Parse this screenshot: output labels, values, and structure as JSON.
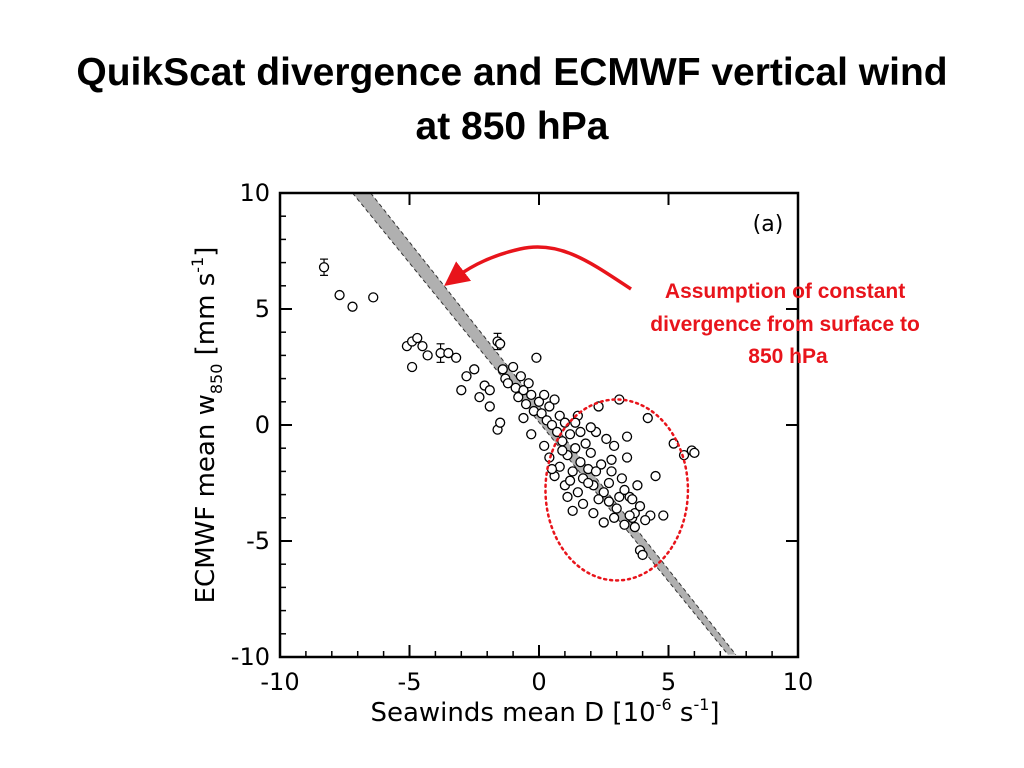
{
  "title": {
    "line1": "QuikScat divergence and ECMWF vertical wind",
    "line2": "at 850 hPa"
  },
  "annotation": {
    "callout_lines": [
      "Assumption of constant",
      "divergence from surface to",
      "850 hPa"
    ],
    "callout_color": "#e8141b"
  },
  "chart_data": {
    "type": "scatter",
    "panel_label": "(a)",
    "title": "",
    "xlabel": "Seawinds mean D [10^-6 s^-1]",
    "ylabel": "ECMWF mean w850 [mm s^-1]",
    "xlim": [
      -10,
      10
    ],
    "ylim": [
      -10,
      10
    ],
    "xticks": [
      -10,
      -5,
      0,
      5,
      10
    ],
    "yticks": [
      -10,
      -5,
      0,
      5,
      10
    ],
    "grid": false,
    "marker": "open-circle",
    "reference_band": {
      "description": "constant divergence assumption",
      "color": "#b0b0b0",
      "line1": [
        [
          -7.2,
          10
        ],
        [
          7.3,
          -9.9
        ]
      ],
      "line2": [
        [
          -6.5,
          10
        ],
        [
          7.6,
          -9.9
        ]
      ]
    },
    "highlight_ellipse": {
      "cx": 3.0,
      "cy": -2.8,
      "rx": 5.5,
      "ry": 3.9,
      "color": "#e8141b"
    },
    "points": [
      {
        "x": -8.3,
        "y": 6.8,
        "err": 0.35
      },
      {
        "x": -7.7,
        "y": 5.6
      },
      {
        "x": -7.2,
        "y": 5.1
      },
      {
        "x": -6.4,
        "y": 5.5
      },
      {
        "x": -5.1,
        "y": 3.4
      },
      {
        "x": -4.9,
        "y": 3.6
      },
      {
        "x": -4.7,
        "y": 3.75
      },
      {
        "x": -4.5,
        "y": 3.4
      },
      {
        "x": -4.3,
        "y": 3.0
      },
      {
        "x": -4.9,
        "y": 2.5
      },
      {
        "x": -3.8,
        "y": 3.1,
        "err": 0.4
      },
      {
        "x": -3.5,
        "y": 3.1
      },
      {
        "x": -3.2,
        "y": 2.9
      },
      {
        "x": -2.8,
        "y": 2.1
      },
      {
        "x": -2.5,
        "y": 2.4
      },
      {
        "x": -3.0,
        "y": 1.5
      },
      {
        "x": -2.3,
        "y": 1.2
      },
      {
        "x": -2.1,
        "y": 1.7
      },
      {
        "x": -1.9,
        "y": 1.5
      },
      {
        "x": -1.6,
        "y": 3.6,
        "err": 0.35
      },
      {
        "x": -1.5,
        "y": 3.5
      },
      {
        "x": -1.4,
        "y": 2.4
      },
      {
        "x": -1.3,
        "y": 2.0
      },
      {
        "x": -1.2,
        "y": 1.8
      },
      {
        "x": -1.0,
        "y": 2.5
      },
      {
        "x": -0.9,
        "y": 1.6
      },
      {
        "x": -0.8,
        "y": 1.2
      },
      {
        "x": -0.7,
        "y": 2.1
      },
      {
        "x": -0.6,
        "y": 1.5
      },
      {
        "x": -0.5,
        "y": 0.9
      },
      {
        "x": -0.4,
        "y": 1.8
      },
      {
        "x": -0.3,
        "y": 1.3
      },
      {
        "x": -0.2,
        "y": 0.6
      },
      {
        "x": -0.1,
        "y": 2.9
      },
      {
        "x": 0.0,
        "y": 1.0
      },
      {
        "x": 0.1,
        "y": 0.5
      },
      {
        "x": 0.2,
        "y": 1.3
      },
      {
        "x": 0.3,
        "y": 0.2
      },
      {
        "x": 0.4,
        "y": 0.8
      },
      {
        "x": 0.5,
        "y": 0.0
      },
      {
        "x": 0.6,
        "y": 1.1
      },
      {
        "x": 0.7,
        "y": -0.3
      },
      {
        "x": 0.8,
        "y": 0.4
      },
      {
        "x": 0.9,
        "y": -0.7
      },
      {
        "x": 1.0,
        "y": 0.1
      },
      {
        "x": -1.6,
        "y": -0.2
      },
      {
        "x": -1.5,
        "y": 0.1
      },
      {
        "x": -1.9,
        "y": 0.8
      },
      {
        "x": -0.6,
        "y": 0.3
      },
      {
        "x": -0.3,
        "y": -0.4
      },
      {
        "x": 0.2,
        "y": -0.9
      },
      {
        "x": 1.1,
        "y": -1.3
      },
      {
        "x": 1.2,
        "y": -0.4
      },
      {
        "x": 1.3,
        "y": -2.0
      },
      {
        "x": 1.4,
        "y": -1.0
      },
      {
        "x": 1.5,
        "y": 0.4
      },
      {
        "x": 1.6,
        "y": -1.6
      },
      {
        "x": 1.7,
        "y": -2.3
      },
      {
        "x": 1.8,
        "y": -0.8
      },
      {
        "x": 1.9,
        "y": -1.9
      },
      {
        "x": 2.0,
        "y": -1.2
      },
      {
        "x": 2.1,
        "y": -2.6
      },
      {
        "x": 2.2,
        "y": -0.3
      },
      {
        "x": 2.3,
        "y": 0.8
      },
      {
        "x": 2.4,
        "y": -1.7
      },
      {
        "x": 2.5,
        "y": -2.9
      },
      {
        "x": 2.6,
        "y": -0.6
      },
      {
        "x": 2.7,
        "y": -3.3
      },
      {
        "x": 2.8,
        "y": -2.0
      },
      {
        "x": 2.9,
        "y": -0.9
      },
      {
        "x": 3.0,
        "y": -3.6
      },
      {
        "x": 3.1,
        "y": 1.1
      },
      {
        "x": 3.2,
        "y": -2.3
      },
      {
        "x": 3.3,
        "y": -4.3
      },
      {
        "x": 3.4,
        "y": -1.4
      },
      {
        "x": 3.5,
        "y": -3.1
      },
      {
        "x": 3.6,
        "y": -4.0
      },
      {
        "x": 3.7,
        "y": -3.8
      },
      {
        "x": 3.8,
        "y": -2.6
      },
      {
        "x": 3.9,
        "y": -5.4
      },
      {
        "x": 4.0,
        "y": -5.6
      },
      {
        "x": 4.2,
        "y": 0.3
      },
      {
        "x": 4.3,
        "y": -3.9
      },
      {
        "x": 4.5,
        "y": -2.2
      },
      {
        "x": 4.8,
        "y": -3.9
      },
      {
        "x": 5.2,
        "y": -0.8
      },
      {
        "x": 5.6,
        "y": -1.3
      },
      {
        "x": 5.9,
        "y": -1.1
      },
      {
        "x": 6.0,
        "y": -1.2
      },
      {
        "x": 0.4,
        "y": -1.4
      },
      {
        "x": 0.6,
        "y": -2.2
      },
      {
        "x": 0.8,
        "y": -1.8
      },
      {
        "x": 1.0,
        "y": -2.6
      },
      {
        "x": 1.1,
        "y": -3.1
      },
      {
        "x": 1.3,
        "y": -3.7
      },
      {
        "x": 1.5,
        "y": -2.9
      },
      {
        "x": 1.7,
        "y": -3.4
      },
      {
        "x": 1.9,
        "y": -2.5
      },
      {
        "x": 2.1,
        "y": -3.8
      },
      {
        "x": 2.3,
        "y": -3.2
      },
      {
        "x": 2.5,
        "y": -4.2
      },
      {
        "x": 2.7,
        "y": -2.5
      },
      {
        "x": 2.9,
        "y": -4.0
      },
      {
        "x": 3.1,
        "y": -3.1
      },
      {
        "x": 3.3,
        "y": -2.8
      },
      {
        "x": 3.5,
        "y": -3.9
      },
      {
        "x": 3.7,
        "y": -4.4
      },
      {
        "x": 3.9,
        "y": -3.5
      },
      {
        "x": 4.1,
        "y": -4.1
      },
      {
        "x": 3.6,
        "y": -3.2
      },
      {
        "x": 2.0,
        "y": -0.1
      },
      {
        "x": 1.4,
        "y": 0.1
      },
      {
        "x": 0.9,
        "y": -1.1
      },
      {
        "x": 1.6,
        "y": -0.3
      },
      {
        "x": 2.8,
        "y": -1.5
      },
      {
        "x": 3.4,
        "y": -0.5
      },
      {
        "x": 2.2,
        "y": -2.0
      },
      {
        "x": 1.2,
        "y": -2.4
      },
      {
        "x": 0.5,
        "y": -1.9
      }
    ]
  }
}
